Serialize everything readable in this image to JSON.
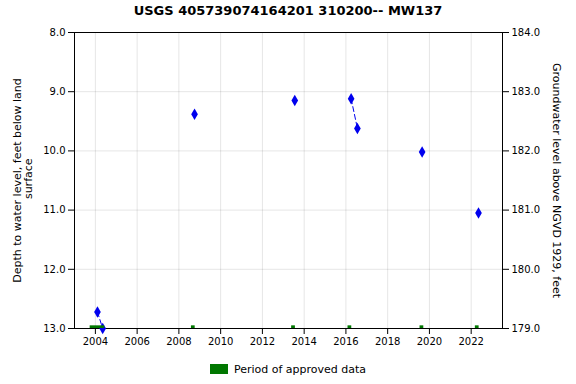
{
  "chart_data": {
    "type": "scatter",
    "title": "USGS 405739074164201 310200-- MW137",
    "y_label": "Depth to water level, feet below land\n surface",
    "y2_label": "Groundwater level above NGVD 1929, feet",
    "xlim": [
      2003.0,
      2023.5
    ],
    "xticks": [
      2004,
      2006,
      2008,
      2010,
      2012,
      2014,
      2016,
      2018,
      2020,
      2022
    ],
    "ylim": [
      13.0,
      8.0
    ],
    "yticks": [
      {
        "value": 8.0,
        "label": "8.0"
      },
      {
        "value": 9.0,
        "label": "9.0"
      },
      {
        "value": 10.0,
        "label": "10.0"
      },
      {
        "value": 11.0,
        "label": "11.0"
      },
      {
        "value": 12.0,
        "label": "12.0"
      },
      {
        "value": 13.0,
        "label": "13.0"
      }
    ],
    "y2lim": [
      179.0,
      184.0
    ],
    "y2ticks": [
      {
        "value": 179.0,
        "label": "179.0"
      },
      {
        "value": 180.0,
        "label": "180.0"
      },
      {
        "value": 181.0,
        "label": "181.0"
      },
      {
        "value": 182.0,
        "label": "182.0"
      },
      {
        "value": 183.0,
        "label": "183.0"
      },
      {
        "value": 184.0,
        "label": "184.0"
      }
    ],
    "grid": true,
    "legend": "bottom",
    "series": [
      {
        "type": "line",
        "color": "#0000EE",
        "line_style": "dashed",
        "segments": [
          {
            "x": [
              2004.1,
              2004.35
            ],
            "values": [
              12.72,
              13.0
            ]
          },
          {
            "x": [
              2016.25,
              2016.55
            ],
            "values": [
              9.12,
              9.62
            ]
          }
        ]
      },
      {
        "type": "scatter",
        "color": "#0000EE",
        "marker": "diamond",
        "x": [
          2004.1,
          2004.35,
          2008.75,
          2013.55,
          2016.25,
          2016.55,
          2019.65,
          2022.35
        ],
        "values": [
          12.72,
          13.0,
          9.38,
          9.15,
          9.12,
          9.62,
          10.02,
          11.05
        ]
      },
      {
        "type": "bar",
        "name": "Period of approved data",
        "color": "#007700",
        "x_start": [
          2003.75,
          2008.6,
          2013.4,
          2016.1,
          2019.55,
          2022.2
        ],
        "x_end": [
          2004.45,
          2008.78,
          2013.58,
          2016.28,
          2019.73,
          2022.38
        ],
        "y": 13.0,
        "bar_height": 0.09
      }
    ]
  }
}
